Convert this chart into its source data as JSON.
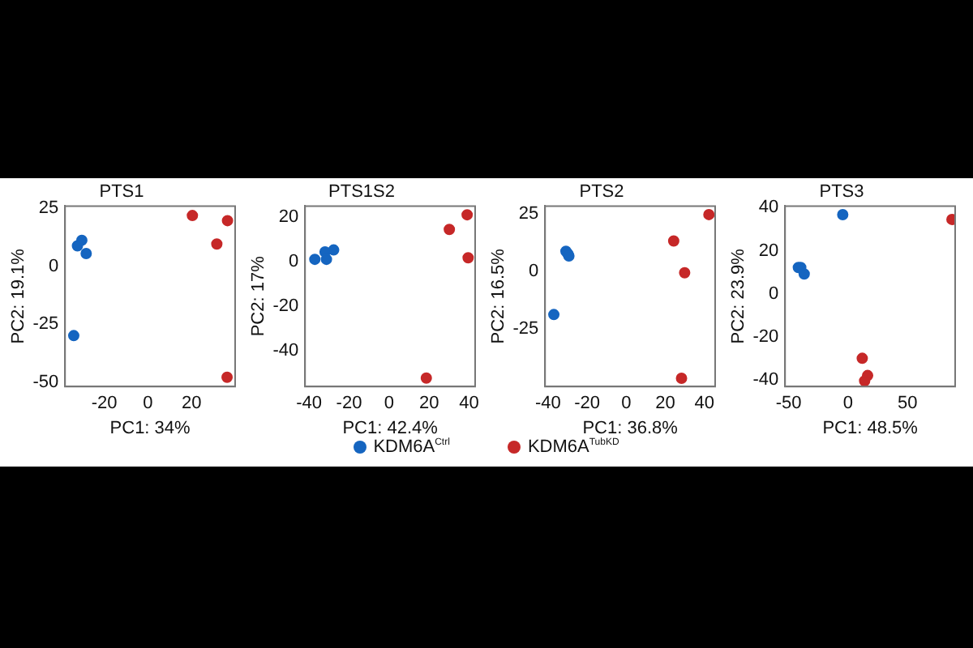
{
  "chart_data": [
    {
      "type": "scatter",
      "title": "PTS1",
      "xlabel": "PC1: 34%",
      "ylabel": "PC2: 19.1%",
      "marker": "circle",
      "legend": "bottom",
      "xlim": [
        -38,
        40
      ],
      "xticks": [
        -20,
        0,
        20
      ],
      "ylim": [
        -52,
        26
      ],
      "yticks": [
        25,
        0,
        -25,
        -50
      ],
      "series": [
        {
          "name": "KDM6A$^{Ctrl}$",
          "color": "#1565c0",
          "x": [
            -30.3,
            -32.3,
            -28.3,
            -34
          ],
          "values": [
            11.2,
            8.8,
            5.5,
            -30
          ]
        },
        {
          "name": "KDM6A$^{TubKD}$",
          "color": "#c62828",
          "x": [
            20.4,
            36.5,
            31.6,
            36.3
          ],
          "values": [
            21.9,
            19.7,
            9.6,
            -48
          ]
        }
      ]
    },
    {
      "type": "scatter",
      "title": "PTS1S2",
      "xlabel": "PC1: 42.4%",
      "ylabel": "PC2: 17%",
      "marker": "circle",
      "xlim": [
        -42,
        43
      ],
      "xticks": [
        -40,
        -20,
        0,
        20,
        40
      ],
      "ylim": [
        -56,
        25
      ],
      "yticks": [
        20,
        0,
        -20,
        -40
      ],
      "series": [
        {
          "color": "#1565c0",
          "x": [
            -37.1,
            -32,
            -31.3,
            -27.7
          ],
          "values": [
            1.1,
            4.4,
            1.1,
            5.3
          ]
        },
        {
          "color": "#c62828",
          "x": [
            39,
            30.1,
            39.5,
            18.6
          ],
          "values": [
            21.1,
            14.5,
            1.8,
            -52.2
          ]
        }
      ]
    },
    {
      "type": "scatter",
      "title": "PTS2",
      "xlabel": "PC1: 36.8%",
      "ylabel": "PC2: 16.5%",
      "marker": "circle",
      "xlim": [
        -41.5,
        45.5
      ],
      "xticks": [
        -40,
        -20,
        0,
        20,
        40
      ],
      "ylim": [
        -50,
        28.5
      ],
      "yticks": [
        25,
        0,
        -25
      ],
      "series": [
        {
          "color": "#1565c0",
          "x": [
            -30.8,
            -29.8,
            -29.3,
            -37
          ],
          "values": [
            8.8,
            7.7,
            6.8,
            -18.7
          ]
        },
        {
          "color": "#c62828",
          "x": [
            42.3,
            24.3,
            29.9,
            28.3
          ],
          "values": [
            24.8,
            13.3,
            -0.5,
            -46.4
          ]
        }
      ]
    },
    {
      "type": "scatter",
      "title": "PTS3",
      "xlabel": "PC1: 48.5%",
      "ylabel": "PC2: 23.9%",
      "marker": "circle",
      "xlim": [
        -53,
        90
      ],
      "xticks": [
        -50,
        0,
        50
      ],
      "ylim": [
        -43,
        40.7
      ],
      "yticks": [
        40,
        20,
        0,
        -20,
        -40
      ],
      "series": [
        {
          "color": "#1565c0",
          "x": [
            -4.5,
            -41.8,
            -39.8,
            -36.9
          ],
          "values": [
            36.7,
            12.2,
            12.2,
            9.2
          ]
        },
        {
          "color": "#c62828",
          "x": [
            87.3,
            11.9,
            16.4,
            13.9
          ],
          "values": [
            34.5,
            -29.9,
            -37.9,
            -40.4
          ]
        }
      ]
    }
  ]
}
